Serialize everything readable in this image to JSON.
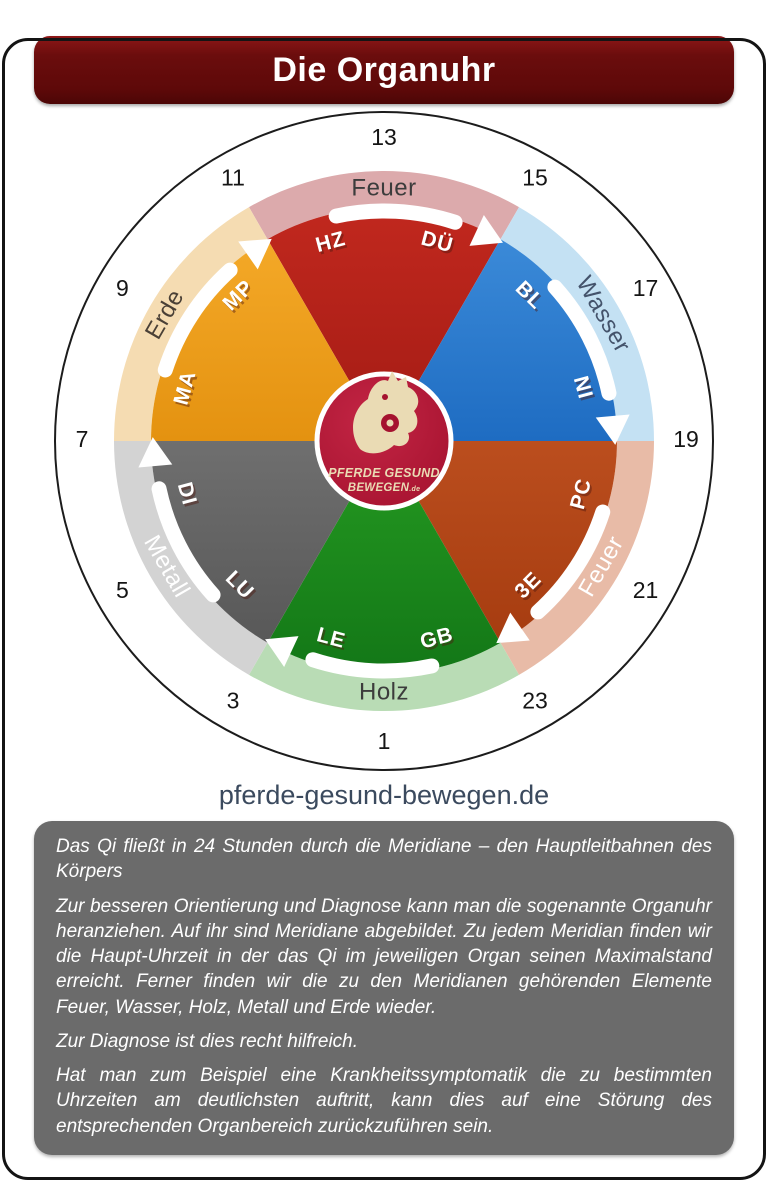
{
  "page": {
    "title": "Die Organuhr",
    "website": "pferde-gesund-bewegen.de",
    "header_color": "#6b0d0d",
    "frame_color": "#141414",
    "info_box_color": "#6b6b6b"
  },
  "clock": {
    "direction": "clockwise",
    "hours": [
      "13",
      "15",
      "17",
      "19",
      "21",
      "23",
      "1",
      "3",
      "5",
      "7",
      "9",
      "11"
    ],
    "elements": [
      {
        "name": "Feuer",
        "start": -30,
        "end": 30,
        "ring_color": "#dcaaac",
        "ring_text_color": "#3c3c3c",
        "wedge_color": "#c1281e",
        "wedge_color2": "#a31b14",
        "organs": [
          {
            "abbr": "HZ",
            "angle": -15
          },
          {
            "abbr": "DÜ",
            "angle": 15
          }
        ]
      },
      {
        "name": "Wasser",
        "start": 30,
        "end": 90,
        "ring_color": "#c4e1f3",
        "ring_text_color": "#44536b",
        "wedge_color": "#3b8ad8",
        "wedge_color2": "#1e6cc2",
        "organs": [
          {
            "abbr": "BL",
            "angle": 45
          },
          {
            "abbr": "NI",
            "angle": 75
          }
        ]
      },
      {
        "name": "Feuer",
        "start": 90,
        "end": 150,
        "ring_color": "#e8bba7",
        "ring_text_color": "#ffffff",
        "wedge_color": "#bb4e1e",
        "wedge_color2": "#a63c10",
        "organs": [
          {
            "abbr": "PC",
            "angle": 105
          },
          {
            "abbr": "3E",
            "angle": 135
          }
        ]
      },
      {
        "name": "Holz",
        "start": 150,
        "end": 210,
        "ring_color": "#b9dcb5",
        "ring_text_color": "#3c3c3c",
        "wedge_color": "#259a21",
        "wedge_color2": "#137717",
        "organs": [
          {
            "abbr": "GB",
            "angle": 165
          },
          {
            "abbr": "LE",
            "angle": 195
          }
        ]
      },
      {
        "name": "Metall",
        "start": 210,
        "end": 270,
        "ring_color": "#d3d3d3",
        "ring_text_color": "#ffffff",
        "wedge_color": "#6f6f6f",
        "wedge_color2": "#585858",
        "organs": [
          {
            "abbr": "LU",
            "angle": 225
          },
          {
            "abbr": "DI",
            "angle": 255
          }
        ]
      },
      {
        "name": "Erde",
        "start": 270,
        "end": 330,
        "ring_color": "#f5dcb2",
        "ring_text_color": "#4a4036",
        "wedge_color": "#f4a928",
        "wedge_color2": "#e49210",
        "organs": [
          {
            "abbr": "MA",
            "angle": 285
          },
          {
            "abbr": "MP",
            "angle": 315
          }
        ]
      }
    ],
    "arrow_color": "#ffffff",
    "logo": {
      "line1": "PFERDE GESUND",
      "line2": "BEWEGEN",
      "suffix": ".de",
      "bg": "#c32544",
      "bg2": "#a5122f",
      "fg": "#eadbb4"
    }
  },
  "info_box": {
    "paragraphs": [
      "Das Qi fließt in 24 Stunden durch die Meridiane – den Hauptleitbahnen des Körpers",
      "Zur besseren Orientierung und Diagnose kann man die sogenannte Organuhr heranziehen. Auf ihr sind Meridiane abgebildet. Zu jedem Meridian finden wir die Haupt-Uhrzeit in der das Qi im jeweiligen Organ seinen Maximalstand erreicht. Ferner finden wir die zu den Meridianen gehörenden Elemente Feuer, Wasser, Holz, Metall und Erde wieder.",
      "Zur Diagnose ist dies recht hilfreich.",
      "Hat man zum Beispiel eine Krankheitssymptomatik die zu bestimmten Uhrzeiten am deutlichsten auftritt, kann dies auf eine Störung des entsprechenden Organbereich zurückzuführen sein."
    ]
  }
}
